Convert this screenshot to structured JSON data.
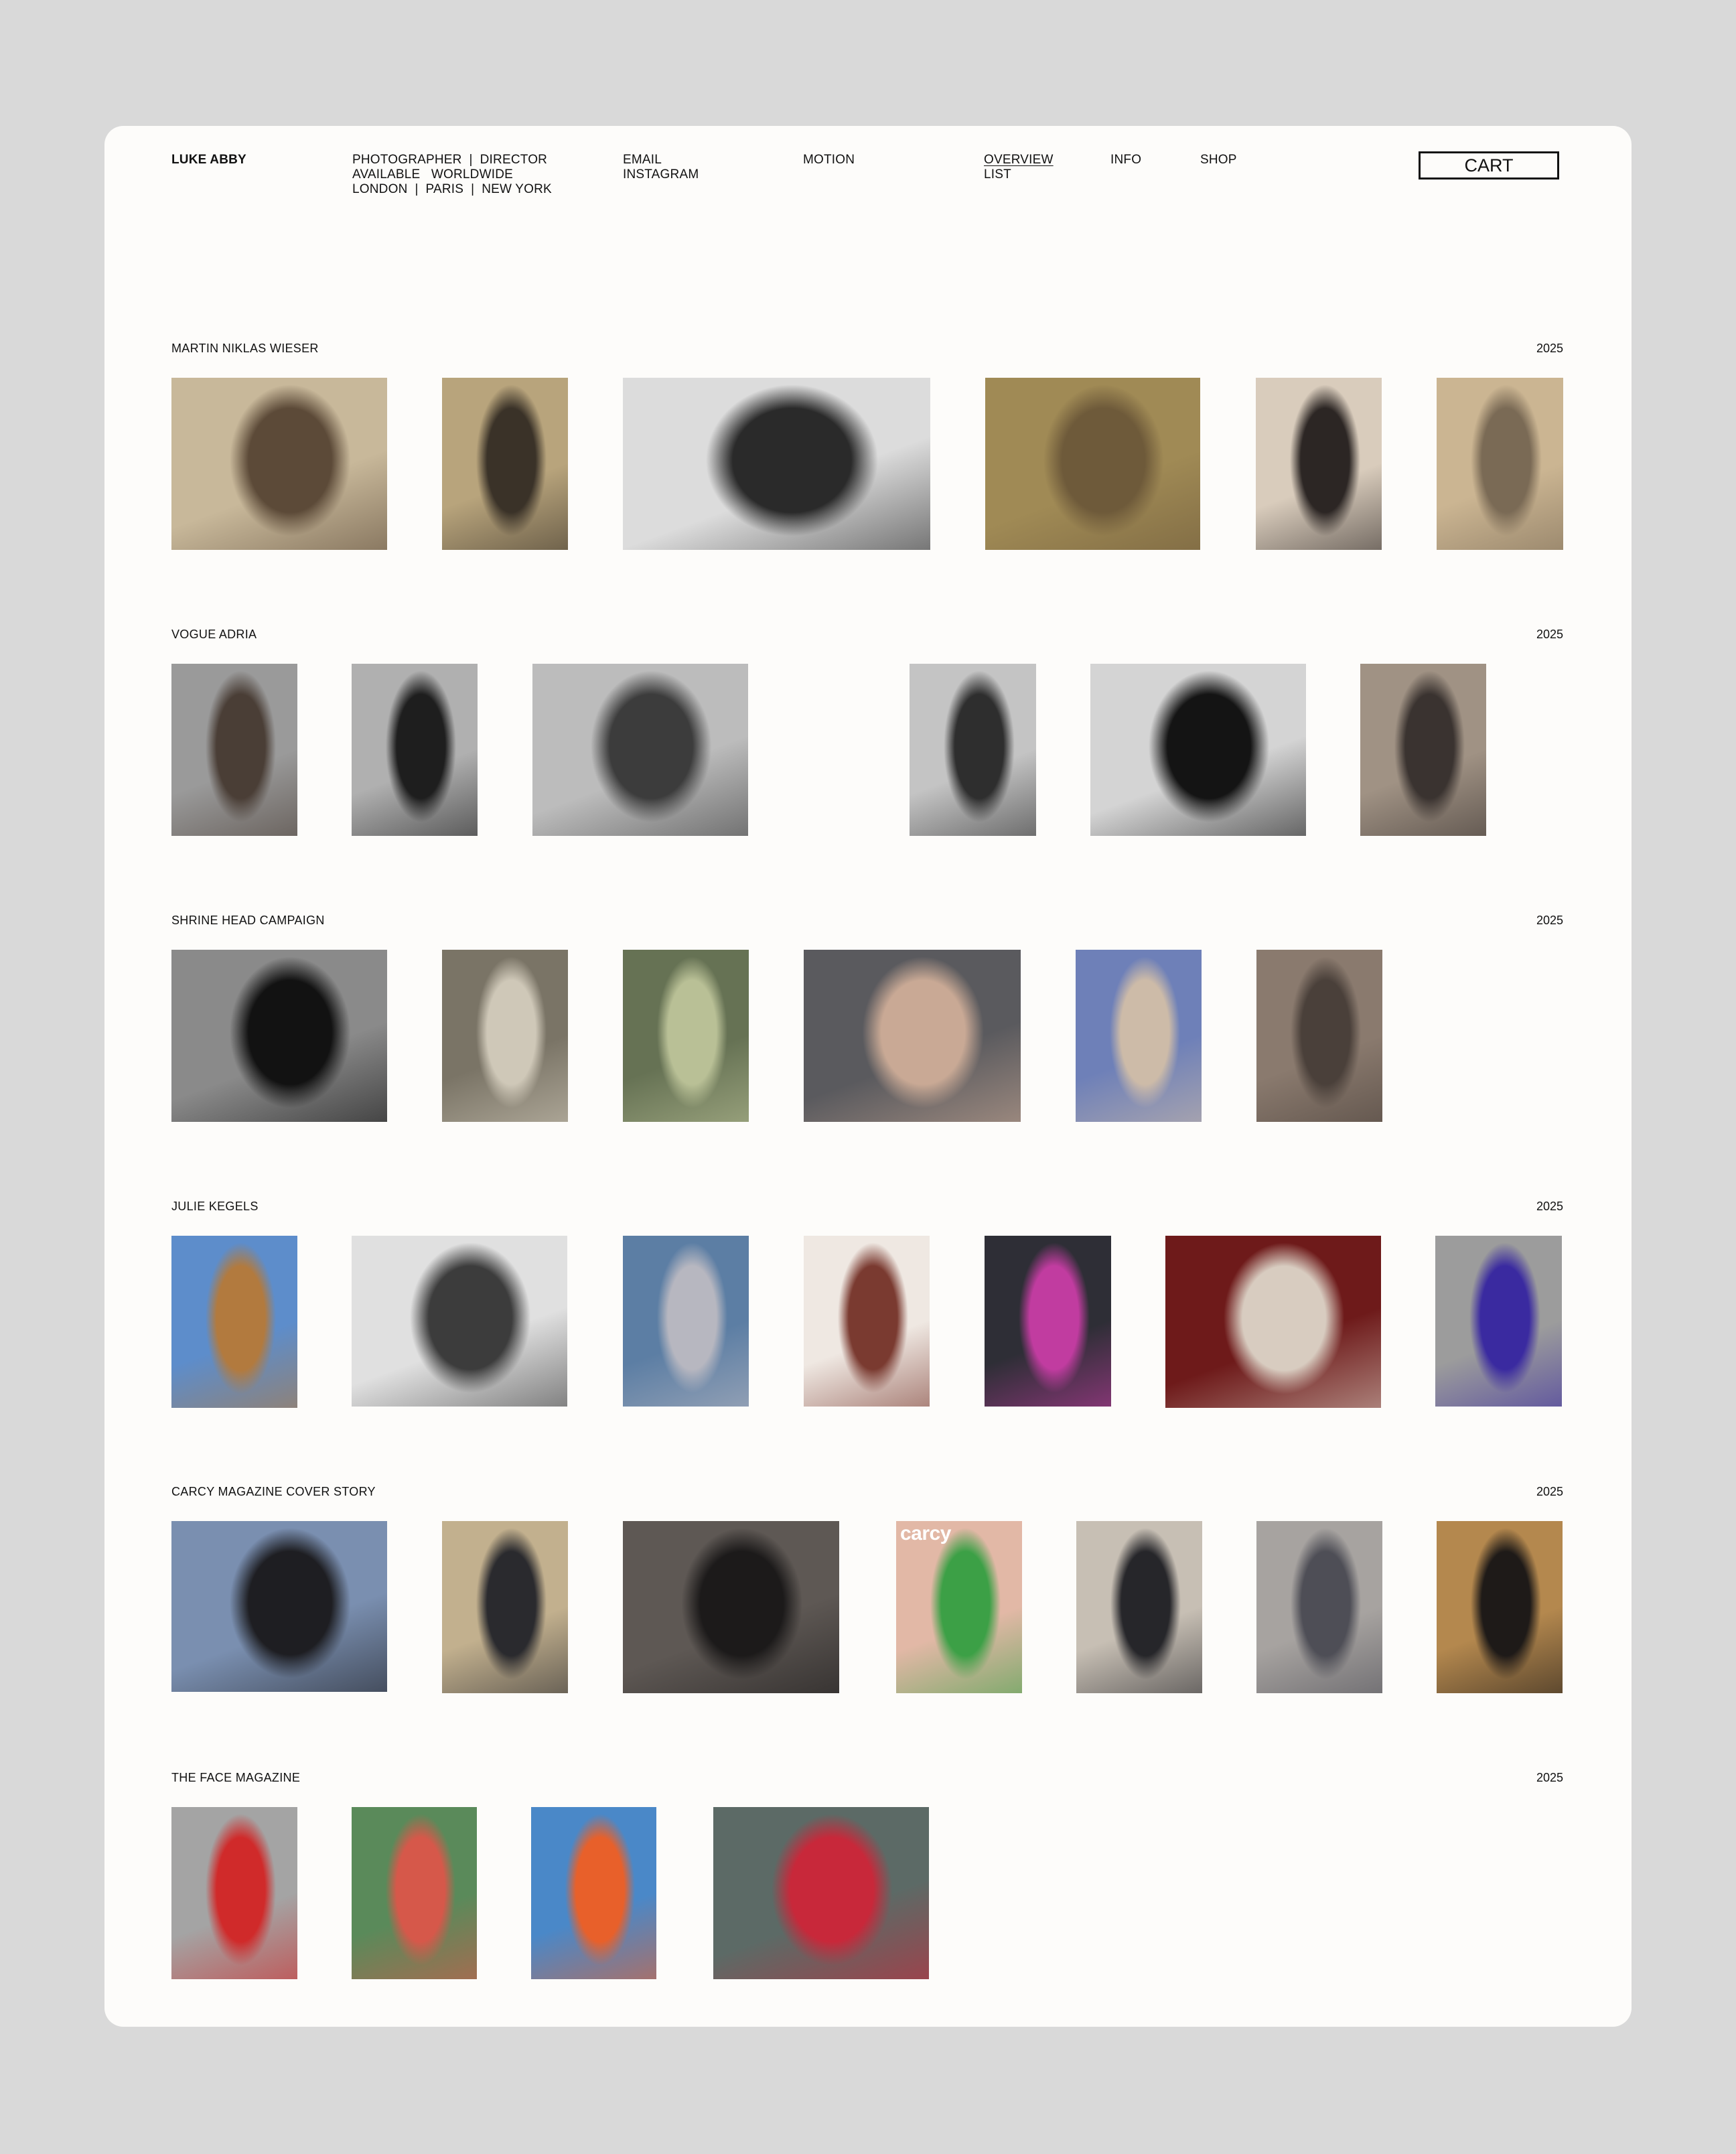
{
  "brand": "LUKE ABBY",
  "info": {
    "line1": "PHOTOGRAPHER  |  DIRECTOR",
    "line2": "AVAILABLE   WORLDWIDE",
    "line3": "LONDON  |  PARIS  |  NEW YORK"
  },
  "contact": {
    "email": "EMAIL",
    "instagram": "INSTAGRAM"
  },
  "nav": {
    "motion": "MOTION",
    "overview": "OVERVIEW",
    "list": "LIST",
    "info": "INFO",
    "shop": "SHOP",
    "cart": "CART"
  },
  "projects": [
    {
      "title": "MARTIN NIKLAS WIESER",
      "year": "2025",
      "images": [
        {
          "name": "photo-man-in-empty-room",
          "colors": [
            "#c8b89a",
            "#5c4a38"
          ]
        },
        {
          "name": "photo-man-in-doorway",
          "colors": [
            "#b8a47c",
            "#3a3228"
          ]
        },
        {
          "name": "photo-two-men-bw-wall",
          "colors": [
            "#dcdcdc",
            "#2a2a2a"
          ]
        },
        {
          "name": "photo-shirtless-silver-trousers",
          "colors": [
            "#a08a55",
            "#6e5a3a"
          ]
        },
        {
          "name": "photo-curly-hair-black-coat",
          "colors": [
            "#d9ccbc",
            "#2c2624"
          ]
        },
        {
          "name": "photo-man-seated-knit",
          "colors": [
            "#cbb592",
            "#7a6a55"
          ]
        }
      ]
    },
    {
      "title": "VOGUE ADRIA",
      "year": "2025",
      "images": [
        {
          "name": "photo-couple-embrace-grey",
          "colors": [
            "#9a9a9a",
            "#4a3e36"
          ]
        },
        {
          "name": "photo-couple-kiss-bw",
          "colors": [
            "#b0b0b0",
            "#1e1e1e"
          ]
        },
        {
          "name": "photo-blonde-and-dark-hair",
          "colors": [
            "#bcbcbc",
            "#3c3c3c"
          ]
        },
        {
          "name": "photo-two-women-bw",
          "colors": [
            "#c4c4c4",
            "#2e2e2e"
          ]
        },
        {
          "name": "photo-black-coats-mannequins",
          "colors": [
            "#d4d4d4",
            "#141414"
          ]
        },
        {
          "name": "photo-couple-kiss-red-hair",
          "colors": [
            "#a09284",
            "#3a3330"
          ]
        }
      ]
    },
    {
      "title": "SHRINE HEAD CAMPAIGN",
      "year": "2025",
      "images": [
        {
          "name": "photo-man-in-pipe-bw",
          "colors": [
            "#8a8a8a",
            "#121212"
          ]
        },
        {
          "name": "photo-couple-on-shore",
          "colors": [
            "#7a7466",
            "#cfc8b8"
          ]
        },
        {
          "name": "photo-green-figure-tinted",
          "colors": [
            "#667254",
            "#b9c096"
          ]
        },
        {
          "name": "photo-reclining-figure-leather",
          "colors": [
            "#5a5a5e",
            "#c9a995"
          ]
        },
        {
          "name": "photo-couple-dusk-sky",
          "colors": [
            "#6e80b8",
            "#cdbba8"
          ]
        },
        {
          "name": "photo-figure-in-tunnel",
          "colors": [
            "#8a7a6e",
            "#4a403a"
          ]
        }
      ]
    },
    {
      "title": "JULIE KEGELS",
      "year": "2025",
      "images": [
        {
          "name": "photo-blue-skirt-legs",
          "colors": [
            "#5d8dcb",
            "#b27a3e"
          ]
        },
        {
          "name": "photo-bag-on-car-bw",
          "colors": [
            "#e0e0e0",
            "#3c3c3c"
          ]
        },
        {
          "name": "photo-figure-on-rocks-sea",
          "colors": [
            "#5c7ea4",
            "#b7b7c0"
          ]
        },
        {
          "name": "photo-woman-pink-top",
          "colors": [
            "#efe8e2",
            "#7a3a30"
          ]
        },
        {
          "name": "photo-purple-bag-on-chair",
          "colors": [
            "#2e2e36",
            "#c13ca0"
          ]
        },
        {
          "name": "photo-woman-red-room",
          "colors": [
            "#6e1a1a",
            "#d8ccc0"
          ]
        },
        {
          "name": "photo-woman-purple-dress",
          "colors": [
            "#9c9c9c",
            "#3a2aa0"
          ]
        }
      ]
    },
    {
      "title": "CARCY MAGAZINE COVER STORY",
      "year": "2025",
      "images": [
        {
          "name": "photo-man-suit-window-dusk",
          "colors": [
            "#7a8fb0",
            "#1e1e22"
          ]
        },
        {
          "name": "photo-man-suit-mirror",
          "colors": [
            "#c2b08e",
            "#2a2a2e"
          ]
        },
        {
          "name": "photo-man-leather-armchair",
          "colors": [
            "#5e5854",
            "#1c1a1a"
          ]
        },
        {
          "name": "photo-carcy-cover-face",
          "colors": [
            "#e2b8a6",
            "#3ca046"
          ],
          "cover_text": "carcy"
        },
        {
          "name": "photo-man-sweater-lying",
          "colors": [
            "#c7bfb4",
            "#26262a"
          ]
        },
        {
          "name": "photo-man-shirt-open",
          "colors": [
            "#a7a3a0",
            "#4e4e56"
          ]
        },
        {
          "name": "photo-figure-on-tatami",
          "colors": [
            "#b4884e",
            "#1e1a18"
          ]
        }
      ]
    },
    {
      "title": "THE FACE MAGAZINE",
      "year": "2025",
      "images": [
        {
          "name": "photo-blue-sculpture-yellow-cap",
          "colors": [
            "#a4a4a4",
            "#d02a2a"
          ]
        },
        {
          "name": "photo-red-sculpture-green-cap",
          "colors": [
            "#5a8a5a",
            "#d6584a"
          ]
        },
        {
          "name": "photo-blue-creature-orange-eyes",
          "colors": [
            "#4a88c8",
            "#e8602a"
          ]
        },
        {
          "name": "photo-blue-sculpture-red-cap",
          "colors": [
            "#5c6a66",
            "#c8283a"
          ]
        }
      ]
    }
  ]
}
